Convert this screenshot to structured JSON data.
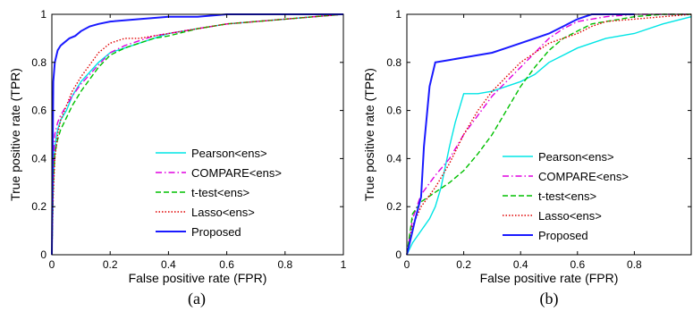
{
  "chart_data": [
    {
      "type": "line",
      "caption": "(a)",
      "xlabel": "False positive rate (FPR)",
      "ylabel": "True positive rate (TPR)",
      "xlim": [
        0,
        1
      ],
      "ylim": [
        0,
        1
      ],
      "xticks": [
        "0",
        "0.2",
        "0.4",
        "0.6",
        "0.8",
        "1"
      ],
      "yticks": [
        "0",
        "0.2",
        "0.4",
        "0.6",
        "0.8",
        "1"
      ],
      "legend_position": "bottom-right",
      "series": [
        {
          "name": "Pearson<ens>",
          "color": "#00e5e5",
          "dash": "solid",
          "x": [
            0,
            0.005,
            0.01,
            0.02,
            0.03,
            0.05,
            0.07,
            0.1,
            0.13,
            0.16,
            0.2,
            0.25,
            0.3,
            0.35,
            0.4,
            0.5,
            0.6,
            0.7,
            0.8,
            0.9,
            1
          ],
          "y": [
            0,
            0.3,
            0.45,
            0.52,
            0.56,
            0.6,
            0.66,
            0.72,
            0.76,
            0.8,
            0.84,
            0.86,
            0.88,
            0.9,
            0.92,
            0.94,
            0.96,
            0.97,
            0.98,
            0.99,
            1
          ]
        },
        {
          "name": "COMPARE<ens>",
          "color": "#e000e0",
          "dash": "dashdot",
          "x": [
            0,
            0.005,
            0.01,
            0.02,
            0.03,
            0.05,
            0.07,
            0.1,
            0.13,
            0.16,
            0.2,
            0.25,
            0.3,
            0.35,
            0.4,
            0.5,
            0.6,
            0.7,
            0.8,
            0.9,
            1
          ],
          "y": [
            0,
            0.35,
            0.5,
            0.55,
            0.58,
            0.62,
            0.66,
            0.71,
            0.75,
            0.79,
            0.84,
            0.87,
            0.89,
            0.91,
            0.92,
            0.94,
            0.96,
            0.97,
            0.98,
            0.99,
            1
          ]
        },
        {
          "name": "t-test<ens>",
          "color": "#00c000",
          "dash": "dashed",
          "x": [
            0,
            0.005,
            0.01,
            0.02,
            0.03,
            0.05,
            0.07,
            0.1,
            0.13,
            0.16,
            0.2,
            0.25,
            0.3,
            0.35,
            0.4,
            0.5,
            0.6,
            0.7,
            0.8,
            0.9,
            1
          ],
          "y": [
            0,
            0.3,
            0.42,
            0.48,
            0.52,
            0.57,
            0.62,
            0.68,
            0.73,
            0.78,
            0.83,
            0.86,
            0.88,
            0.9,
            0.91,
            0.94,
            0.96,
            0.97,
            0.98,
            0.99,
            1
          ]
        },
        {
          "name": "Lasso<ens>",
          "color": "#e00000",
          "dash": "dotted",
          "x": [
            0,
            0.005,
            0.01,
            0.02,
            0.03,
            0.05,
            0.07,
            0.1,
            0.13,
            0.16,
            0.2,
            0.25,
            0.3,
            0.35,
            0.4,
            0.5,
            0.6,
            0.7,
            0.8,
            0.9,
            1
          ],
          "y": [
            0,
            0.25,
            0.4,
            0.5,
            0.56,
            0.62,
            0.68,
            0.74,
            0.79,
            0.84,
            0.88,
            0.9,
            0.9,
            0.91,
            0.92,
            0.94,
            0.96,
            0.97,
            0.98,
            0.99,
            1
          ]
        },
        {
          "name": "Proposed",
          "color": "#1a1aff",
          "dash": "solid",
          "x": [
            0,
            0.005,
            0.01,
            0.02,
            0.03,
            0.04,
            0.06,
            0.08,
            0.1,
            0.13,
            0.16,
            0.2,
            0.3,
            0.4,
            0.5,
            0.6,
            0.7,
            0.8,
            0.9,
            1
          ],
          "y": [
            0,
            0.72,
            0.8,
            0.85,
            0.87,
            0.88,
            0.9,
            0.91,
            0.93,
            0.95,
            0.96,
            0.97,
            0.98,
            0.99,
            0.99,
            1,
            1,
            1,
            1,
            1
          ]
        }
      ]
    },
    {
      "type": "line",
      "caption": "(b)",
      "xlabel": "False positive rate (FPR)",
      "ylabel": "True positive rate (TPR)",
      "xlim": [
        0,
        1
      ],
      "ylim": [
        0,
        1
      ],
      "xticks": [
        "0",
        "0.2",
        "0.4",
        "0.6",
        "0.8"
      ],
      "yticks": [
        "0",
        "0.2",
        "0.4",
        "0.6",
        "0.8",
        "1"
      ],
      "legend_position": "bottom-right",
      "series": [
        {
          "name": "Pearson<ens>",
          "color": "#00e5e5",
          "dash": "solid",
          "x": [
            0,
            0.02,
            0.05,
            0.08,
            0.1,
            0.12,
            0.15,
            0.17,
            0.2,
            0.25,
            0.3,
            0.35,
            0.4,
            0.45,
            0.5,
            0.6,
            0.7,
            0.8,
            0.9,
            1
          ],
          "y": [
            0,
            0.05,
            0.1,
            0.15,
            0.2,
            0.28,
            0.45,
            0.55,
            0.67,
            0.67,
            0.68,
            0.7,
            0.72,
            0.75,
            0.8,
            0.86,
            0.9,
            0.92,
            0.96,
            0.99
          ]
        },
        {
          "name": "COMPARE<ens>",
          "color": "#e000e0",
          "dash": "dashdot",
          "x": [
            0,
            0.02,
            0.05,
            0.1,
            0.15,
            0.2,
            0.25,
            0.3,
            0.35,
            0.4,
            0.45,
            0.5,
            0.55,
            0.6,
            0.65,
            0.7,
            0.8,
            0.9,
            1
          ],
          "y": [
            0,
            0.15,
            0.25,
            0.33,
            0.4,
            0.5,
            0.58,
            0.66,
            0.72,
            0.78,
            0.84,
            0.9,
            0.94,
            0.97,
            0.98,
            0.99,
            1,
            1,
            1
          ]
        },
        {
          "name": "t-test<ens>",
          "color": "#00c000",
          "dash": "dashed",
          "x": [
            0,
            0.02,
            0.05,
            0.1,
            0.15,
            0.2,
            0.25,
            0.3,
            0.35,
            0.4,
            0.45,
            0.5,
            0.55,
            0.6,
            0.65,
            0.7,
            0.8,
            0.9,
            1
          ],
          "y": [
            0,
            0.17,
            0.22,
            0.26,
            0.3,
            0.35,
            0.42,
            0.5,
            0.6,
            0.7,
            0.78,
            0.85,
            0.9,
            0.93,
            0.96,
            0.97,
            0.99,
            1,
            1
          ]
        },
        {
          "name": "Lasso<ens>",
          "color": "#e00000",
          "dash": "dotted",
          "x": [
            0,
            0.02,
            0.05,
            0.1,
            0.15,
            0.2,
            0.25,
            0.3,
            0.35,
            0.4,
            0.45,
            0.5,
            0.55,
            0.6,
            0.65,
            0.7,
            0.8,
            0.9,
            1
          ],
          "y": [
            0,
            0.12,
            0.2,
            0.28,
            0.38,
            0.5,
            0.6,
            0.68,
            0.74,
            0.8,
            0.84,
            0.88,
            0.9,
            0.92,
            0.95,
            0.97,
            0.98,
            0.99,
            1
          ]
        },
        {
          "name": "Proposed",
          "color": "#1a1aff",
          "dash": "solid",
          "x": [
            0,
            0.01,
            0.02,
            0.03,
            0.05,
            0.06,
            0.08,
            0.1,
            0.15,
            0.2,
            0.3,
            0.35,
            0.4,
            0.45,
            0.5,
            0.55,
            0.6,
            0.65,
            0.7,
            0.8
          ],
          "y": [
            0,
            0.05,
            0.1,
            0.15,
            0.24,
            0.45,
            0.7,
            0.8,
            0.81,
            0.82,
            0.84,
            0.86,
            0.88,
            0.9,
            0.92,
            0.95,
            0.98,
            1,
            1,
            1
          ]
        }
      ]
    }
  ]
}
